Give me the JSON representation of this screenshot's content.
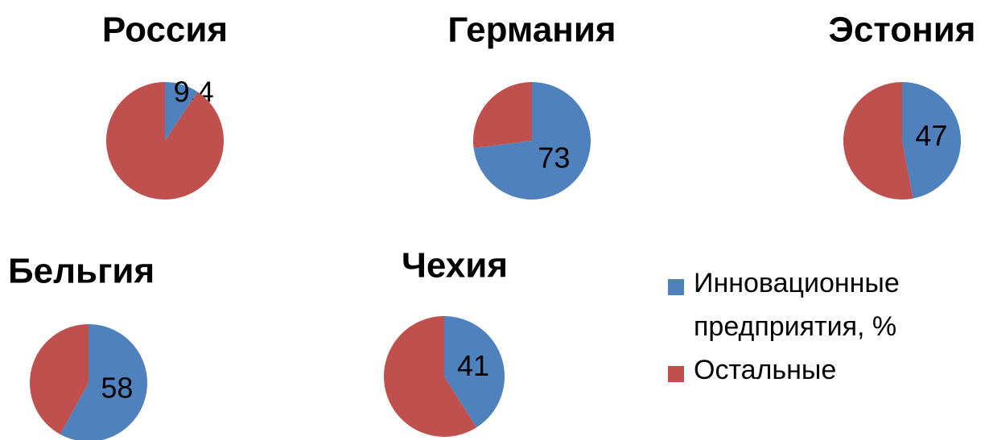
{
  "chart_data": [
    {
      "type": "pie",
      "title": "Россия",
      "values": [
        9.4,
        90.6
      ],
      "value_labels": [
        "9,4",
        null
      ]
    },
    {
      "type": "pie",
      "title": "Германия",
      "values": [
        73,
        27
      ]
    },
    {
      "type": "pie",
      "title": "Эстония",
      "values": [
        47,
        53
      ]
    },
    {
      "type": "pie",
      "title": "Бельгия",
      "values": [
        58,
        42
      ]
    },
    {
      "type": "pie",
      "title": "Чехия",
      "values": [
        41,
        59
      ]
    }
  ],
  "legend": {
    "labels": [
      "Инновационные предприятия, %",
      "Остальные"
    ],
    "colors": [
      "#4f81bd",
      "#c0504d"
    ]
  }
}
